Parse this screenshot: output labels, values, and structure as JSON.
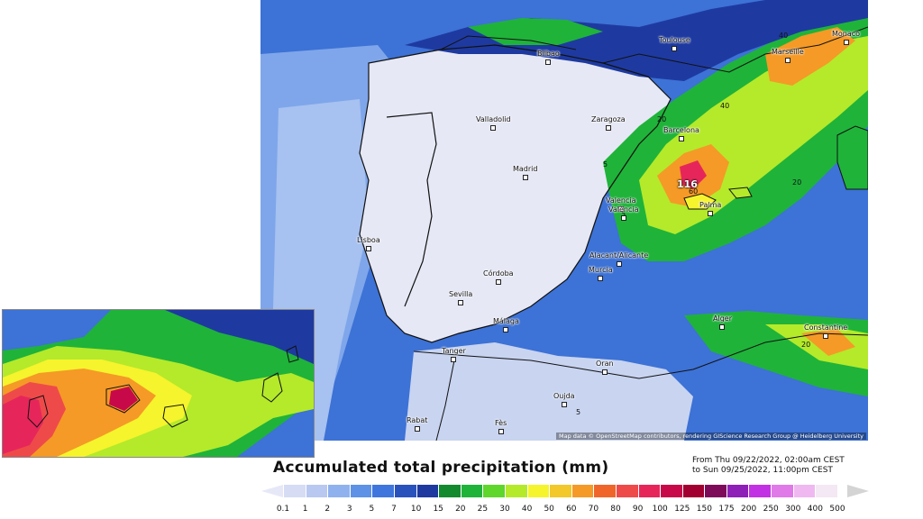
{
  "title": "Accumulated total precipitation (mm)",
  "period": {
    "from": "From Thu 09/22/2022, 02:00am CEST",
    "to": "to Sun 09/25/2022, 11:00pm CEST"
  },
  "attribution": "Map data © OpenStreetMap contributors, rendering GIScience Research Group @ Heidelberg University",
  "max_value_label": "116",
  "cities": [
    "Toulouse",
    "Monaco",
    "Marseille",
    "Bilbao",
    "Valladolid",
    "Zaragoza",
    "Barcelona",
    "Madrid",
    "Valencia",
    "València",
    "Palma",
    "Lisboa",
    "Alacant/Alicante",
    "Murcia",
    "Córdoba",
    "Sevilla",
    "Málaga",
    "Alger",
    "Constantine",
    "Tanger",
    "Oran",
    "Oujda",
    "Rabat",
    "Fès"
  ],
  "contour_labels": [
    "5",
    "20",
    "40",
    "60",
    "5",
    "20",
    "40",
    "20",
    "5"
  ],
  "legend": {
    "ticks": [
      "0.1",
      "1",
      "2",
      "3",
      "5",
      "7",
      "10",
      "15",
      "20",
      "25",
      "30",
      "40",
      "50",
      "60",
      "70",
      "80",
      "90",
      "100",
      "125",
      "150",
      "175",
      "200",
      "250",
      "300",
      "400",
      "500"
    ],
    "colors": [
      "#d6dcf4",
      "#b9c8f1",
      "#8fb2ee",
      "#5d92e6",
      "#3f76dd",
      "#2a52bd",
      "#1e3aa0",
      "#138a2e",
      "#1fb33a",
      "#5fd62b",
      "#b4ea2a",
      "#f6f42c",
      "#f2c82a",
      "#f59a26",
      "#f0662a",
      "#ef4a4a",
      "#e6265a",
      "#c7094a",
      "#a10030",
      "#7e0a5a",
      "#8e20b8",
      "#c232e4",
      "#e07ae8",
      "#f0b8f0",
      "#f4e8f4"
    ],
    "low_arrow_color": "#e6e8f8",
    "high_arrow_color": "#d4d4d4"
  }
}
